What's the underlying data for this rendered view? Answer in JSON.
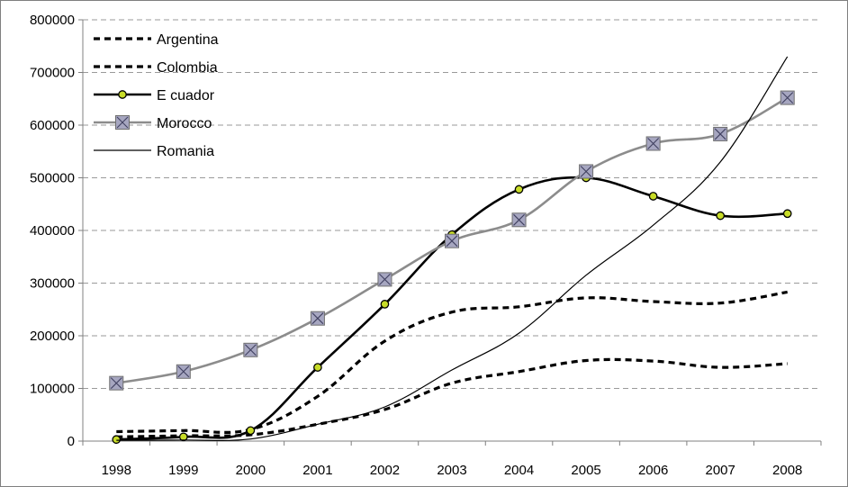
{
  "chart_data": {
    "type": "line",
    "title": "",
    "xlabel": "",
    "ylabel": "",
    "x": [
      "1998",
      "1999",
      "2000",
      "2001",
      "2002",
      "2003",
      "2004",
      "2005",
      "2006",
      "2007",
      "2008"
    ],
    "ylim": [
      0,
      800000
    ],
    "yticks": [
      0,
      100000,
      200000,
      300000,
      400000,
      500000,
      600000,
      700000,
      800000
    ],
    "ytick_labels": [
      "0",
      "100000",
      "200000",
      "300000",
      "400000",
      "500000",
      "600000",
      "700000",
      "800000"
    ],
    "grid": "horizontal dashed",
    "legend_position": "top-left inside",
    "series": [
      {
        "name": "Argentina",
        "style": "dashed-thick",
        "color": "#000000",
        "values": [
          18000,
          20000,
          22000,
          85000,
          190000,
          245000,
          255000,
          272000,
          265000,
          262000,
          283000
        ]
      },
      {
        "name": "Colombia",
        "style": "dashed-thick",
        "color": "#000000",
        "values": [
          8000,
          10000,
          12000,
          32000,
          60000,
          110000,
          132000,
          153000,
          152000,
          140000,
          147000
        ]
      },
      {
        "name": "E cuador",
        "style": "solid-thick-circle",
        "color": "#000000",
        "marker_fill": "#c8dc28",
        "values": [
          3000,
          8000,
          20000,
          140000,
          260000,
          392000,
          478000,
          500000,
          465000,
          428000,
          432000
        ]
      },
      {
        "name": "Morocco",
        "style": "solid-gray-square-x",
        "color": "#8c8c8c",
        "marker_fill": "#a6a6c0",
        "values": [
          110000,
          132000,
          173000,
          233000,
          307000,
          380000,
          420000,
          512000,
          565000,
          583000,
          652000
        ]
      },
      {
        "name": "Romania",
        "style": "solid-thin",
        "color": "#000000",
        "values": [
          1500,
          2000,
          4000,
          32000,
          65000,
          135000,
          205000,
          315000,
          410000,
          530000,
          730000
        ]
      }
    ]
  }
}
